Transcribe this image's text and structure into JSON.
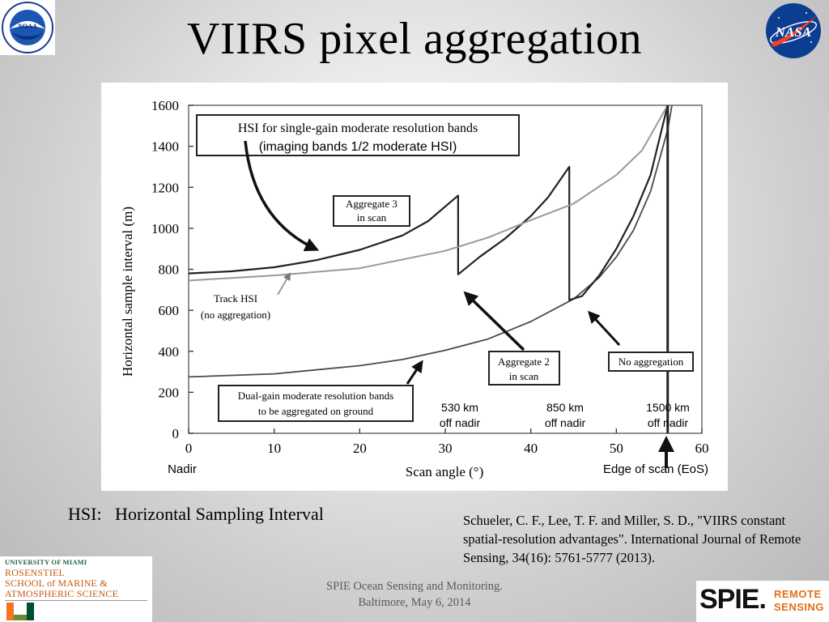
{
  "slide": {
    "title": "VIIRS pixel aggregation",
    "hsi_definition": "HSI:   Horizontal Sampling Interval",
    "citation": "Schueler, C. F., Lee, T. F. and Miller, S. D., \"VIIRS constant spatial-resolution advantages\". International Journal of Remote Sensing, 34(16): 5761-5777 (2013).",
    "footer_line1": "SPIE Ocean Sensing and Monitoring.",
    "footer_line2": "Baltimore, May 6, 2014"
  },
  "logos": {
    "noaa": "noaa-logo",
    "nasa": "nasa-logo",
    "umiami_top": "UNIVERSITY OF MIAMI",
    "umiami_line1": "ROSENSTIEL",
    "umiami_line2": "SCHOOL of MARINE &",
    "umiami_line3": "ATMOSPHERIC SCIENCE",
    "spie_word": "SPIE.",
    "spie_remote": "REMOTE",
    "spie_sensing": "SENSING"
  },
  "chart_data": {
    "type": "line",
    "xlabel": "Scan angle (°)",
    "ylabel": "Horizontal sample interval (m)",
    "xlim": [
      0,
      60
    ],
    "ylim": [
      0,
      1600
    ],
    "xticks": [
      0,
      10,
      20,
      30,
      40,
      50,
      60
    ],
    "yticks": [
      0,
      200,
      400,
      600,
      800,
      1000,
      1200,
      1400,
      1600
    ],
    "x_tick_extra_left": "Nadir",
    "x_tick_extra_right": "Edge of scan (EoS)",
    "series": [
      {
        "key": "dual_gain",
        "points": [
          [
            0,
            275
          ],
          [
            10,
            290
          ],
          [
            20,
            330
          ],
          [
            25,
            360
          ],
          [
            30,
            405
          ],
          [
            35,
            460
          ],
          [
            40,
            545
          ],
          [
            45,
            655
          ],
          [
            48,
            760
          ],
          [
            50,
            860
          ],
          [
            52,
            990
          ],
          [
            54,
            1180
          ],
          [
            56,
            1480
          ],
          [
            56.5,
            1600
          ]
        ]
      },
      {
        "key": "single_gain",
        "points": [
          [
            0,
            780
          ],
          [
            5,
            790
          ],
          [
            10,
            810
          ],
          [
            15,
            845
          ],
          [
            20,
            895
          ],
          [
            25,
            965
          ],
          [
            28,
            1035
          ],
          [
            31.5,
            1160
          ],
          [
            31.5,
            775
          ],
          [
            34,
            860
          ],
          [
            37,
            950
          ],
          [
            40,
            1060
          ],
          [
            42,
            1150
          ],
          [
            44.5,
            1300
          ],
          [
            44.5,
            650
          ],
          [
            46,
            670
          ],
          [
            48,
            770
          ],
          [
            50,
            900
          ],
          [
            52,
            1060
          ],
          [
            54,
            1260
          ],
          [
            56,
            1600
          ]
        ]
      },
      {
        "key": "track_hsi",
        "points": [
          [
            0,
            745
          ],
          [
            10,
            770
          ],
          [
            20,
            805
          ],
          [
            30,
            890
          ],
          [
            35,
            955
          ],
          [
            40,
            1040
          ],
          [
            45,
            1120
          ],
          [
            50,
            1260
          ],
          [
            53,
            1380
          ],
          [
            56,
            1600
          ]
        ]
      }
    ],
    "vertical_marker_x": 56,
    "annotations": {
      "single_gain_label_1": "HSI for single-gain moderate resolution bands",
      "single_gain_label_2": "(imaging bands 1/2 moderate HSI)",
      "aggregate3_1": "Aggregate 3",
      "aggregate3_2": "in scan",
      "track_hsi_1": "Track HSI",
      "track_hsi_2": "(no aggregation)",
      "dual_gain_1": "Dual-gain moderate resolution bands",
      "dual_gain_2": "to be aggregated on ground",
      "aggregate2_1": "Aggregate 2",
      "aggregate2_2": "in scan",
      "no_aggregation": "No aggregation",
      "km530_1": "530 km",
      "km530_2": "off nadir",
      "km850_1": "850 km",
      "km850_2": "off nadir",
      "km1500_1": "1500 km",
      "km1500_2": "off nadir"
    }
  }
}
